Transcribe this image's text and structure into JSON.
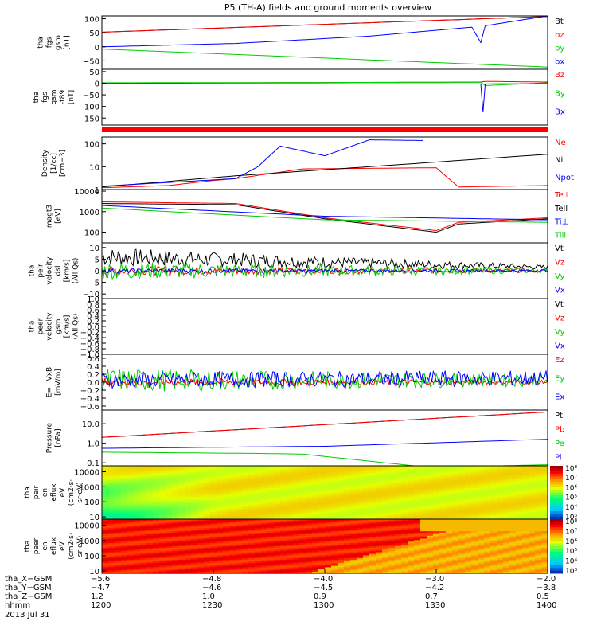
{
  "title": "P5 (TH-A) fields and ground moments overview",
  "colors": {
    "black": "#000000",
    "red": "#ff0000",
    "green": "#00cc00",
    "blue": "#0000ff"
  },
  "chart_data": [
    {
      "type": "line",
      "id": "fgs",
      "ylabel": [
        "tha",
        "fgs",
        "gsm",
        "[nT]"
      ],
      "ylim": [
        -80,
        110
      ],
      "yticks": [
        100,
        50,
        0,
        -50
      ],
      "ytick_labels": [
        "100",
        "50",
        "0",
        "−50"
      ],
      "series": [
        {
          "name": "Bt",
          "color": "black",
          "x": [
            0,
            1
          ],
          "y": [
            52,
            108
          ]
        },
        {
          "name": "bz",
          "color": "red",
          "x": [
            0,
            1
          ],
          "y": [
            52,
            108
          ]
        },
        {
          "name": "by",
          "color": "green",
          "x": [
            0,
            1
          ],
          "y": [
            -8,
            -72
          ]
        },
        {
          "name": "bx",
          "color": "blue",
          "x": [
            0,
            0.3,
            0.6,
            0.83,
            0.85,
            0.86,
            1
          ],
          "y": [
            0,
            12,
            38,
            70,
            15,
            75,
            110
          ]
        }
      ]
    },
    {
      "type": "line",
      "id": "fgs-t89",
      "ylabel": [
        "tha",
        "fgs",
        "gsm",
        "-t89",
        "[nT]"
      ],
      "ylim": [
        -180,
        60
      ],
      "yticks": [
        50,
        0,
        -50,
        -100,
        -150
      ],
      "ytick_labels": [
        "50",
        "0",
        "−50",
        "−100",
        "−150"
      ],
      "series": [
        {
          "name": "Bz",
          "color": "red",
          "x": [
            0,
            0.85,
            0.86,
            1
          ],
          "y": [
            0,
            5,
            8,
            5
          ]
        },
        {
          "name": "By",
          "color": "green",
          "x": [
            0,
            0.85,
            0.86,
            1
          ],
          "y": [
            2,
            4,
            -10,
            2
          ]
        },
        {
          "name": "Bx",
          "color": "blue",
          "x": [
            0,
            0.85,
            0.855,
            0.86,
            1
          ],
          "y": [
            -2,
            -3,
            -125,
            -3,
            -2
          ]
        }
      ]
    },
    {
      "type": "line",
      "id": "density",
      "ylabel": [
        "Density",
        "[1/cc]",
        "[cm−3]"
      ],
      "scale": "log",
      "ylim": [
        1,
        200
      ],
      "yticks": [
        100,
        10,
        1
      ],
      "ytick_labels": [
        "100",
        "10",
        "1"
      ],
      "series": [
        {
          "name": "Ne",
          "color": "red",
          "x": [
            0,
            0.15,
            0.25,
            0.3,
            0.45,
            0.75,
            0.8,
            1
          ],
          "y": [
            1.2,
            1.5,
            2.5,
            3,
            8,
            9,
            1.3,
            1.5
          ]
        },
        {
          "name": "Ni",
          "color": "black",
          "x": [
            0,
            0.3,
            0.6,
            1
          ],
          "y": [
            1.3,
            4,
            10,
            35
          ]
        },
        {
          "name": "Npot",
          "color": "blue",
          "x": [
            0,
            0.3,
            0.35,
            0.4,
            0.5,
            0.6,
            0.72
          ],
          "y": [
            1.4,
            3,
            10,
            80,
            30,
            150,
            140
          ]
        }
      ]
    },
    {
      "type": "line",
      "id": "temperature",
      "ylabel": [
        "magt3",
        "[eV]"
      ],
      "scale": "log",
      "ylim": [
        30,
        12000
      ],
      "yticks": [
        10000,
        1000,
        100
      ],
      "ytick_labels": [
        "10000",
        "1000",
        "100"
      ],
      "series": [
        {
          "name": "Te⊥",
          "color": "red",
          "x": [
            0,
            0.3,
            0.5,
            0.75,
            0.8,
            1
          ],
          "y": [
            3000,
            2500,
            500,
            120,
            300,
            500
          ]
        },
        {
          "name": "Tell",
          "color": "black",
          "x": [
            0,
            0.3,
            0.5,
            0.75,
            0.8,
            1
          ],
          "y": [
            2500,
            2200,
            450,
            100,
            250,
            450
          ]
        },
        {
          "name": "Ti⊥",
          "color": "blue",
          "x": [
            0,
            0.5,
            1
          ],
          "y": [
            2000,
            600,
            400
          ]
        },
        {
          "name": "Till",
          "color": "green",
          "x": [
            0,
            0.5,
            1
          ],
          "y": [
            1500,
            400,
            300
          ]
        }
      ]
    },
    {
      "type": "line",
      "id": "peir-velocity",
      "ylabel": [
        "tha",
        "peir",
        "velocity",
        "dsl",
        "[km/s]",
        "(All Qs)"
      ],
      "ylim": [
        -12,
        12
      ],
      "yticks": [
        10,
        5,
        0,
        -5,
        -10
      ],
      "ytick_labels": [
        "10",
        "5",
        "0",
        "−5",
        "−10"
      ],
      "series": [
        {
          "name": "Vt",
          "color": "black",
          "x": [
            0,
            1
          ],
          "y": [
            6,
            1.5
          ],
          "noise": [
            4,
            1
          ]
        },
        {
          "name": "Vz",
          "color": "red",
          "x": [
            0,
            1
          ],
          "y": [
            0,
            0
          ],
          "noise": [
            2,
            0.8
          ]
        },
        {
          "name": "Vy",
          "color": "green",
          "x": [
            0,
            1
          ],
          "y": [
            0,
            0
          ],
          "noise": [
            4,
            1
          ]
        },
        {
          "name": "Vx",
          "color": "blue",
          "x": [
            0,
            1
          ],
          "y": [
            0,
            0
          ],
          "noise": [
            1,
            0.5
          ]
        }
      ]
    },
    {
      "type": "line",
      "id": "peer-velocity",
      "ylabel": [
        "tha",
        "peer",
        "velocity",
        "gsm",
        "[km/s]",
        "(All Qs)"
      ],
      "ylim": [
        -1,
        1
      ],
      "yticks": [
        1.0,
        0.8,
        0.6,
        0.4,
        0.2,
        0,
        -0.2,
        -0.4,
        -0.6,
        -0.8,
        -1.0
      ],
      "ytick_labels": [
        "1.0",
        "0.8",
        "0.6",
        "0.4",
        "0.2",
        "0.0",
        "−0.2",
        "−0.4",
        "−0.6",
        "−0.8",
        "−1.0"
      ],
      "series": [
        {
          "name": "Vt",
          "color": "black",
          "x": [],
          "y": []
        },
        {
          "name": "Vz",
          "color": "red",
          "x": [],
          "y": []
        },
        {
          "name": "Vy",
          "color": "green",
          "x": [],
          "y": []
        },
        {
          "name": "Vx",
          "color": "blue",
          "x": [],
          "y": []
        }
      ]
    },
    {
      "type": "line",
      "id": "efield",
      "ylabel": [
        "E=−VxB",
        "[mV/m]"
      ],
      "ylim": [
        -0.7,
        0.7
      ],
      "yticks": [
        0.6,
        0.4,
        0.2,
        0,
        -0.2,
        -0.4,
        -0.6
      ],
      "ytick_labels": [
        "0.6",
        "0.4",
        "0.2",
        "0.0",
        "−0.2",
        "−0.4",
        "−0.6"
      ],
      "series": [
        {
          "name": "Ez",
          "color": "red",
          "x": [
            0,
            1
          ],
          "y": [
            0,
            0
          ],
          "noise": [
            0.1,
            0.05
          ]
        },
        {
          "name": "Ey",
          "color": "green",
          "x": [
            0,
            1
          ],
          "y": [
            0.05,
            0.05
          ],
          "noise": [
            0.3,
            0.15
          ]
        },
        {
          "name": "Ex",
          "color": "blue",
          "x": [
            0,
            1
          ],
          "y": [
            0.05,
            0.1
          ],
          "noise": [
            0.2,
            0.2
          ]
        }
      ]
    },
    {
      "type": "line",
      "id": "pressure",
      "ylabel": [
        "Pressure",
        "[nPa]"
      ],
      "scale": "log",
      "ylim": [
        0.07,
        50
      ],
      "yticks": [
        10,
        1,
        0.1
      ],
      "ytick_labels": [
        "10.0",
        "1.0",
        "0.1"
      ],
      "series": [
        {
          "name": "Pt",
          "color": "black",
          "x": [
            0,
            1
          ],
          "y": [
            2,
            40
          ]
        },
        {
          "name": "Pb",
          "color": "red",
          "x": [
            0,
            1
          ],
          "y": [
            2,
            40
          ]
        },
        {
          "name": "Pe",
          "color": "green",
          "x": [
            0,
            0.35,
            0.45,
            0.7,
            0.78,
            1
          ],
          "y": [
            0.35,
            0.3,
            0.28,
            0.07,
            0.06,
            0.08
          ]
        },
        {
          "name": "Pi",
          "color": "blue",
          "x": [
            0,
            0.5,
            1
          ],
          "y": [
            0.55,
            0.7,
            1.6
          ]
        }
      ]
    },
    {
      "type": "heatmap",
      "id": "peir-spectrogram",
      "ylabel": [
        "tha",
        "peir",
        "en",
        "eflux",
        "eV",
        "(cm2·s·",
        "sr·eV)"
      ],
      "scale": "log",
      "ylim": [
        7,
        25000
      ],
      "yticks": [
        10000,
        1000,
        100,
        10
      ],
      "ytick_labels": [
        "10000",
        "1000",
        "100",
        "10"
      ],
      "colorbar": {
        "min_exp": 3,
        "max_exp": 8,
        "labels": [
          "10⁸",
          "10⁷",
          "10⁶",
          "10⁵",
          "10⁴",
          "10³"
        ]
      }
    },
    {
      "type": "heatmap",
      "id": "peer-spectrogram",
      "ylabel": [
        "tha",
        "peer",
        "en",
        "eflux",
        "eV",
        "(cm2·s·",
        "sr·eV)"
      ],
      "scale": "log",
      "ylim": [
        7,
        25000
      ],
      "yticks": [
        10000,
        1000,
        100,
        10
      ],
      "ytick_labels": [
        "10000",
        "1000",
        "100",
        "10"
      ],
      "colorbar": {
        "min_exp": 3,
        "max_exp": 8,
        "labels": [
          "10⁸",
          "10⁷",
          "10⁶",
          "10⁵",
          "10⁴",
          "10³"
        ]
      }
    }
  ],
  "footer": {
    "rows": [
      {
        "label": "tha_X−GSM",
        "values": [
          "−5.6",
          "−4.8",
          "−4.0",
          "−3.0",
          "−2.0"
        ]
      },
      {
        "label": "tha_Y−GSM",
        "values": [
          "−4.7",
          "−4.6",
          "−4.5",
          "−4.2",
          "−3.8"
        ]
      },
      {
        "label": "tha_Z−GSM",
        "values": [
          "1.2",
          "1.0",
          "0.9",
          "0.7",
          "0.5"
        ]
      },
      {
        "label": "hhmm",
        "values": [
          "1200",
          "1230",
          "1300",
          "1330",
          "1400"
        ]
      }
    ],
    "date": "2013 Jul 31"
  }
}
